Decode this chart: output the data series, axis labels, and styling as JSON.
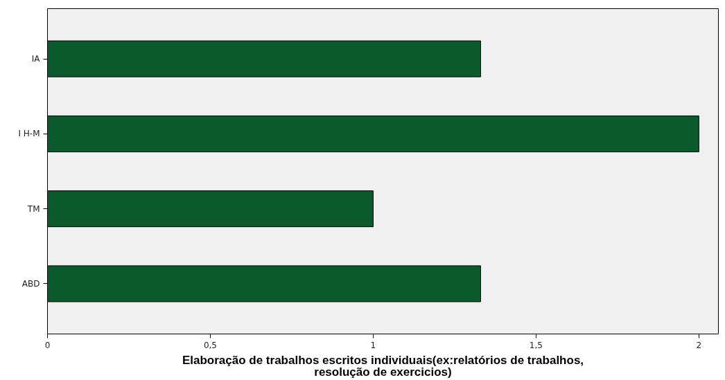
{
  "chart_data": {
    "type": "bar",
    "orientation": "horizontal",
    "xlabel": "Elaboração de trabalhos escritos individuais(ex:relatórios de trabalhos, resolução de exercicios)",
    "categories": [
      "IA",
      "I H-M",
      "TM",
      "ABD"
    ],
    "values": [
      1.33,
      2,
      1,
      1.33
    ],
    "color": "#0b5a2d",
    "xlim": [
      0,
      2.06
    ],
    "xticks": [
      0,
      {
        "value": 0.5,
        "label": "0,5"
      },
      1,
      {
        "value": 1.5,
        "label": "1,5"
      },
      2
    ],
    "grid": false
  }
}
